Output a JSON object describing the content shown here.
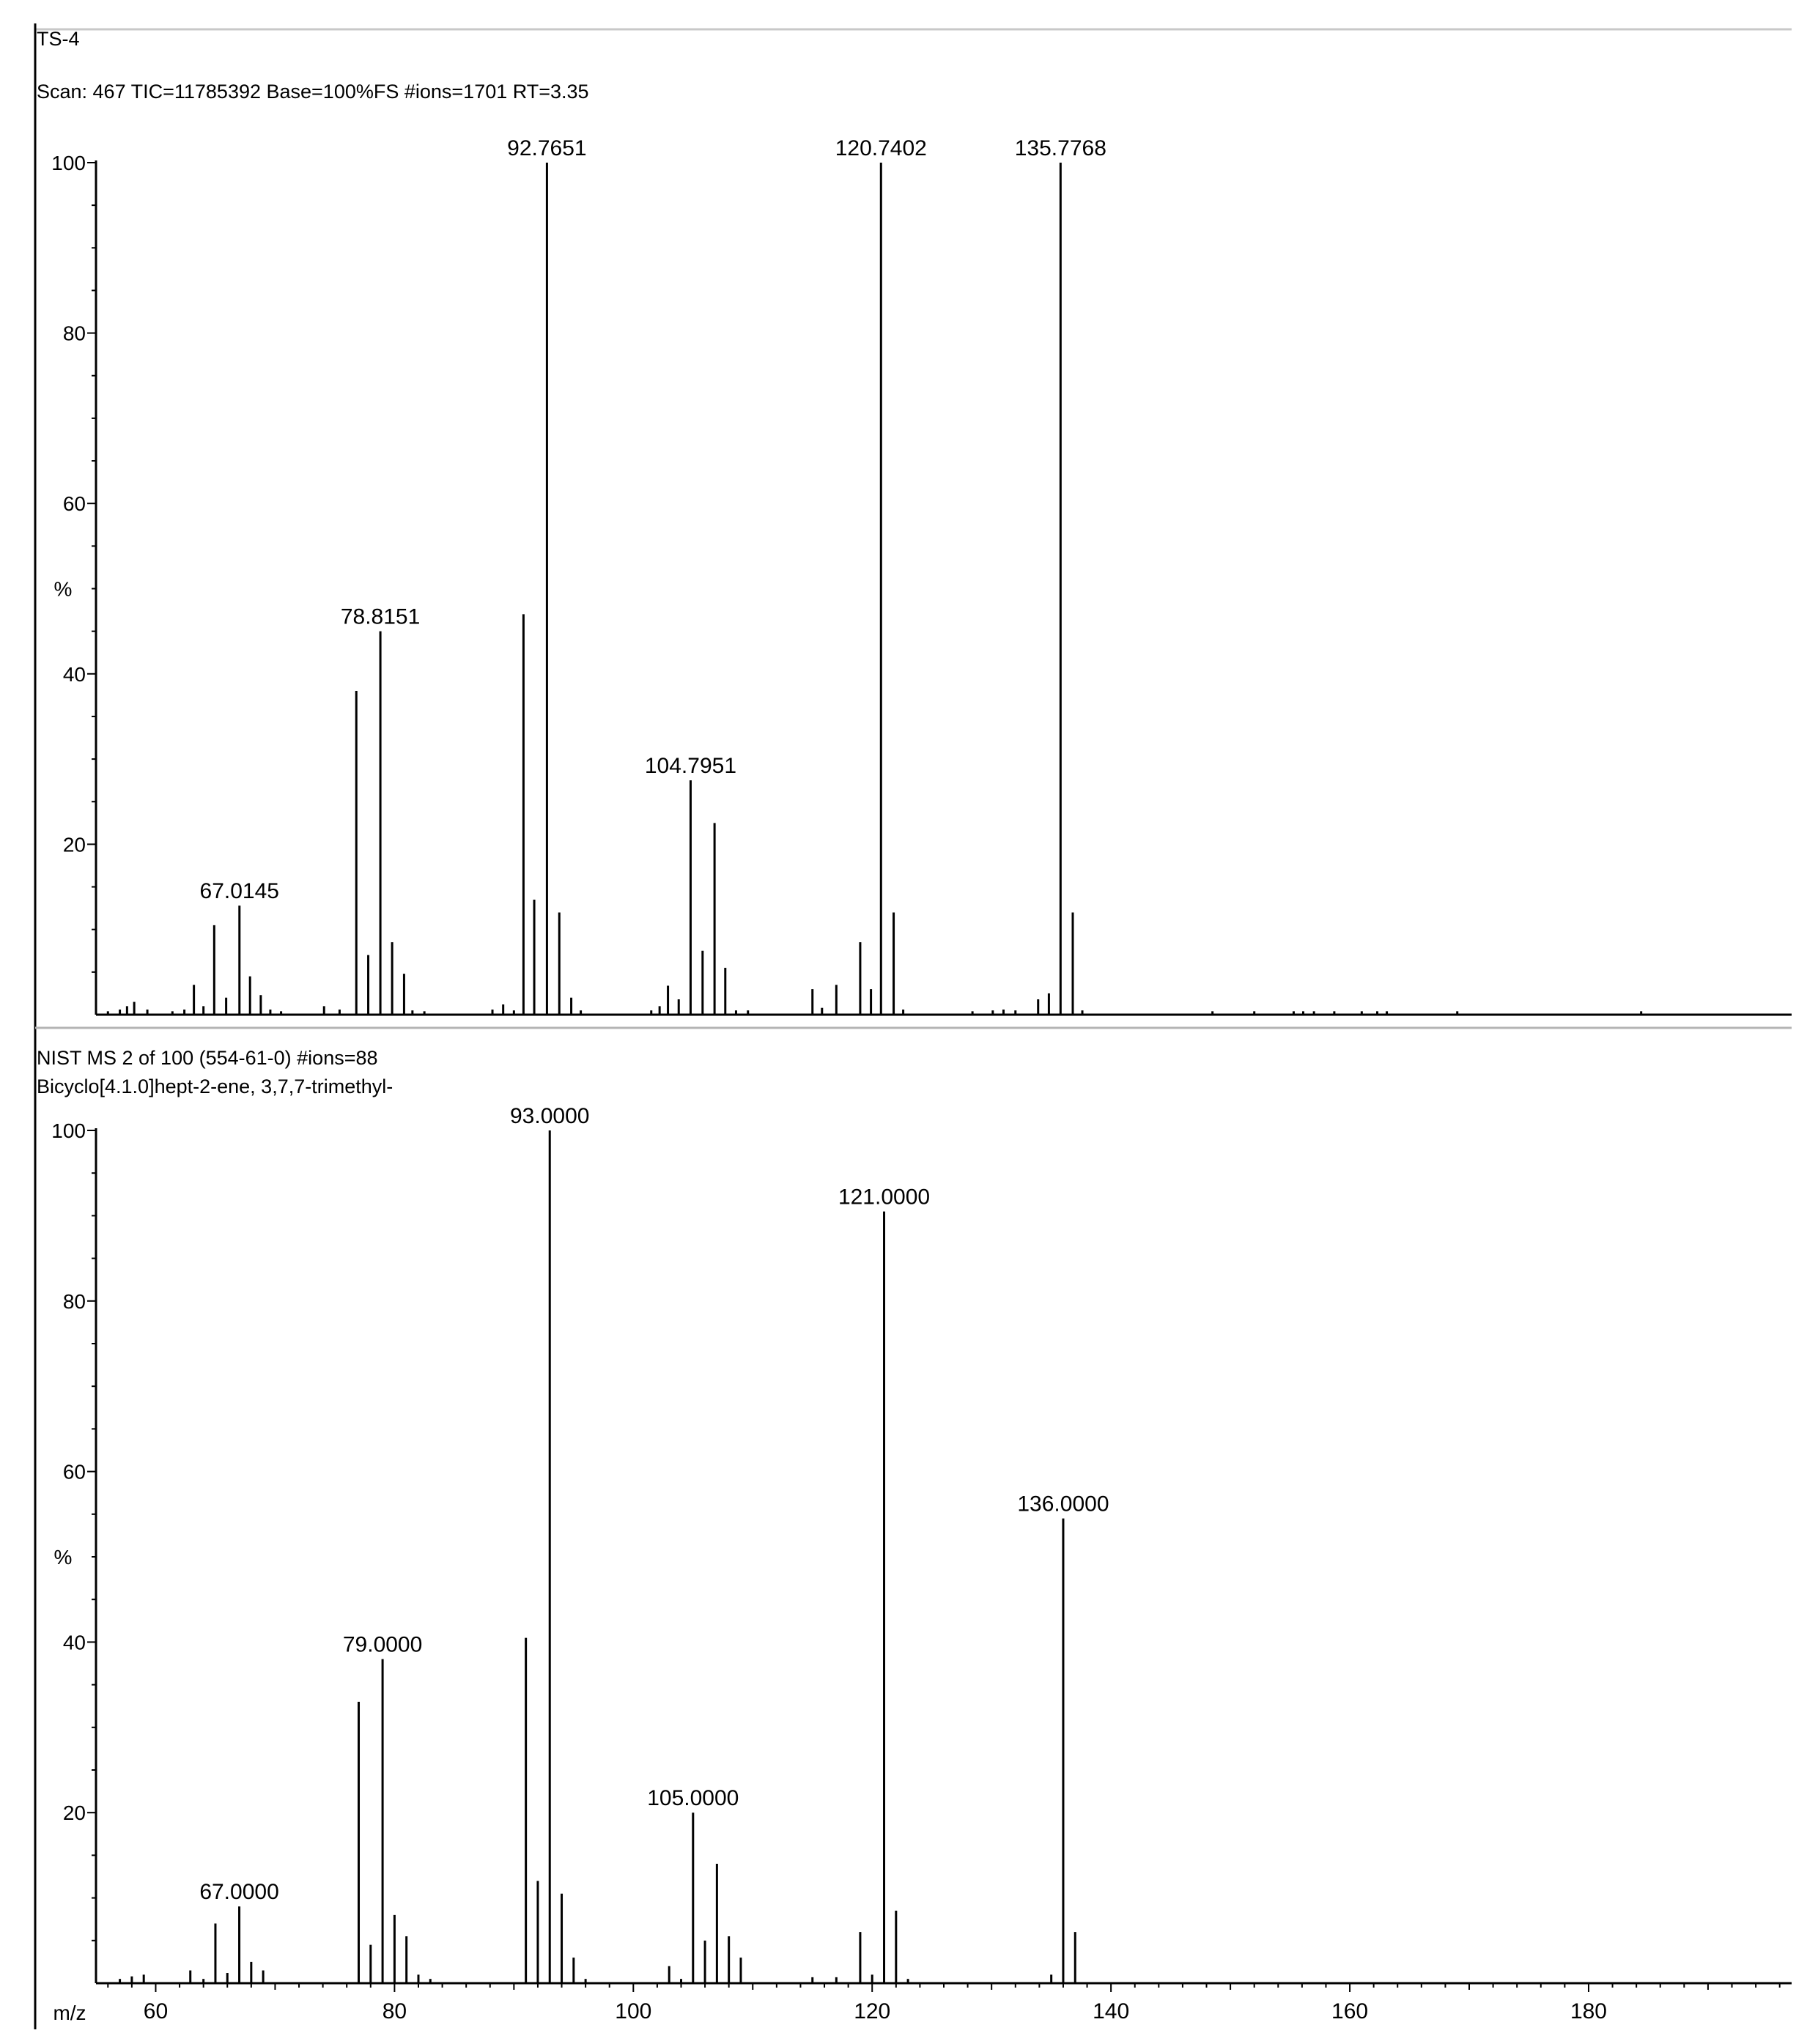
{
  "panels": [
    {
      "header_lines": [
        "TS-4",
        "Scan: 467   TIC=11785392   Base=100%FS   #ions=1701   RT=3.35"
      ],
      "chart_data": {
        "type": "bar",
        "ylabel": "%",
        "xlim": [
          55,
          197
        ],
        "ylim": [
          0,
          100
        ],
        "yticks": [
          20,
          40,
          60,
          80,
          100
        ],
        "peaks": [
          {
            "mz": 56.0,
            "y": 0.4
          },
          {
            "mz": 57.0,
            "y": 0.6
          },
          {
            "mz": 57.6,
            "y": 1.0
          },
          {
            "mz": 58.2,
            "y": 1.5
          },
          {
            "mz": 59.3,
            "y": 0.6
          },
          {
            "mz": 61.4,
            "y": 0.4
          },
          {
            "mz": 62.4,
            "y": 0.6
          },
          {
            "mz": 63.2,
            "y": 3.5
          },
          {
            "mz": 64.0,
            "y": 1.0
          },
          {
            "mz": 64.9,
            "y": 10.5
          },
          {
            "mz": 65.9,
            "y": 2.0
          },
          {
            "mz": 67.0145,
            "y": 12.8,
            "label": "67.0145"
          },
          {
            "mz": 67.9,
            "y": 4.5
          },
          {
            "mz": 68.8,
            "y": 2.3
          },
          {
            "mz": 69.6,
            "y": 0.6
          },
          {
            "mz": 70.5,
            "y": 0.4
          },
          {
            "mz": 74.1,
            "y": 1.0
          },
          {
            "mz": 75.4,
            "y": 0.6
          },
          {
            "mz": 76.8,
            "y": 38.0
          },
          {
            "mz": 77.8,
            "y": 7.0
          },
          {
            "mz": 78.8151,
            "y": 45.0,
            "label": "78.8151"
          },
          {
            "mz": 79.8,
            "y": 8.5
          },
          {
            "mz": 80.8,
            "y": 4.8
          },
          {
            "mz": 81.5,
            "y": 0.5
          },
          {
            "mz": 82.5,
            "y": 0.4
          },
          {
            "mz": 88.2,
            "y": 0.6
          },
          {
            "mz": 89.1,
            "y": 1.2
          },
          {
            "mz": 90.0,
            "y": 0.5
          },
          {
            "mz": 90.8,
            "y": 47.0
          },
          {
            "mz": 91.7,
            "y": 13.5
          },
          {
            "mz": 92.7651,
            "y": 100.0,
            "label": "92.7651"
          },
          {
            "mz": 93.8,
            "y": 12.0
          },
          {
            "mz": 94.8,
            "y": 2.0
          },
          {
            "mz": 95.6,
            "y": 0.5
          },
          {
            "mz": 101.5,
            "y": 0.5
          },
          {
            "mz": 102.2,
            "y": 1.0
          },
          {
            "mz": 102.9,
            "y": 3.4
          },
          {
            "mz": 103.8,
            "y": 1.8
          },
          {
            "mz": 104.7951,
            "y": 27.5,
            "label": "104.7951"
          },
          {
            "mz": 105.8,
            "y": 7.5
          },
          {
            "mz": 106.8,
            "y": 22.5
          },
          {
            "mz": 107.7,
            "y": 5.5
          },
          {
            "mz": 108.6,
            "y": 0.5
          },
          {
            "mz": 109.6,
            "y": 0.5
          },
          {
            "mz": 115.0,
            "y": 3.0
          },
          {
            "mz": 115.8,
            "y": 0.8
          },
          {
            "mz": 117.0,
            "y": 3.5
          },
          {
            "mz": 119.0,
            "y": 8.5
          },
          {
            "mz": 119.9,
            "y": 3.0
          },
          {
            "mz": 120.7402,
            "y": 100.0,
            "label": "120.7402"
          },
          {
            "mz": 121.8,
            "y": 12.0
          },
          {
            "mz": 122.6,
            "y": 0.6
          },
          {
            "mz": 128.4,
            "y": 0.4
          },
          {
            "mz": 130.1,
            "y": 0.5
          },
          {
            "mz": 131.0,
            "y": 0.6
          },
          {
            "mz": 132.0,
            "y": 0.5
          },
          {
            "mz": 133.9,
            "y": 1.8
          },
          {
            "mz": 134.8,
            "y": 2.5
          },
          {
            "mz": 135.7768,
            "y": 100.0,
            "label": "135.7768"
          },
          {
            "mz": 136.8,
            "y": 12.0
          },
          {
            "mz": 137.6,
            "y": 0.5
          },
          {
            "mz": 148.5,
            "y": 0.4
          },
          {
            "mz": 152.0,
            "y": 0.4
          },
          {
            "mz": 155.3,
            "y": 0.4
          },
          {
            "mz": 156.1,
            "y": 0.4
          },
          {
            "mz": 157.0,
            "y": 0.4
          },
          {
            "mz": 158.7,
            "y": 0.4
          },
          {
            "mz": 161.0,
            "y": 0.4
          },
          {
            "mz": 162.3,
            "y": 0.4
          },
          {
            "mz": 163.1,
            "y": 0.4
          },
          {
            "mz": 169.0,
            "y": 0.4
          },
          {
            "mz": 184.4,
            "y": 0.4
          }
        ]
      }
    },
    {
      "header_lines": [
        "NIST MS 2 of 100 (554-61-0)   #ions=88",
        "Bicyclo[4.1.0]hept-2-ene, 3,7,7-trimethyl-"
      ],
      "chart_data": {
        "type": "bar",
        "ylabel": "%",
        "xlabel": "m/z",
        "xlim": [
          55,
          197
        ],
        "ylim": [
          0,
          100
        ],
        "yticks": [
          20,
          40,
          60,
          80,
          100
        ],
        "xticks": [
          60,
          80,
          100,
          120,
          140,
          160,
          180
        ],
        "peaks": [
          {
            "mz": 57.0,
            "y": 0.5
          },
          {
            "mz": 58.0,
            "y": 0.8
          },
          {
            "mz": 59.0,
            "y": 1.0
          },
          {
            "mz": 62.9,
            "y": 1.5
          },
          {
            "mz": 64.0,
            "y": 0.5
          },
          {
            "mz": 65.0,
            "y": 7.0
          },
          {
            "mz": 66.0,
            "y": 1.2
          },
          {
            "mz": 67.0,
            "y": 9.0,
            "label": "67.0000"
          },
          {
            "mz": 68.0,
            "y": 2.5
          },
          {
            "mz": 69.0,
            "y": 1.5
          },
          {
            "mz": 77.0,
            "y": 33.0
          },
          {
            "mz": 78.0,
            "y": 4.5
          },
          {
            "mz": 79.0,
            "y": 38.0,
            "label": "79.0000"
          },
          {
            "mz": 80.0,
            "y": 8.0
          },
          {
            "mz": 81.0,
            "y": 5.5
          },
          {
            "mz": 82.0,
            "y": 1.0
          },
          {
            "mz": 83.0,
            "y": 0.5
          },
          {
            "mz": 91.0,
            "y": 40.5
          },
          {
            "mz": 92.0,
            "y": 12.0
          },
          {
            "mz": 93.0,
            "y": 100.0,
            "label": "93.0000"
          },
          {
            "mz": 94.0,
            "y": 10.5
          },
          {
            "mz": 95.0,
            "y": 3.0
          },
          {
            "mz": 96.0,
            "y": 0.5
          },
          {
            "mz": 103.0,
            "y": 2.0
          },
          {
            "mz": 104.0,
            "y": 0.5
          },
          {
            "mz": 105.0,
            "y": 20.0,
            "label": "105.0000"
          },
          {
            "mz": 106.0,
            "y": 5.0
          },
          {
            "mz": 107.0,
            "y": 14.0
          },
          {
            "mz": 108.0,
            "y": 5.5
          },
          {
            "mz": 109.0,
            "y": 3.0
          },
          {
            "mz": 115.0,
            "y": 0.7
          },
          {
            "mz": 117.0,
            "y": 0.7
          },
          {
            "mz": 119.0,
            "y": 6.0
          },
          {
            "mz": 120.0,
            "y": 1.0
          },
          {
            "mz": 121.0,
            "y": 90.5,
            "label": "121.0000"
          },
          {
            "mz": 122.0,
            "y": 8.5
          },
          {
            "mz": 123.0,
            "y": 0.5
          },
          {
            "mz": 135.0,
            "y": 1.0
          },
          {
            "mz": 136.0,
            "y": 54.5,
            "label": "136.0000"
          },
          {
            "mz": 137.0,
            "y": 6.0
          }
        ]
      }
    }
  ]
}
